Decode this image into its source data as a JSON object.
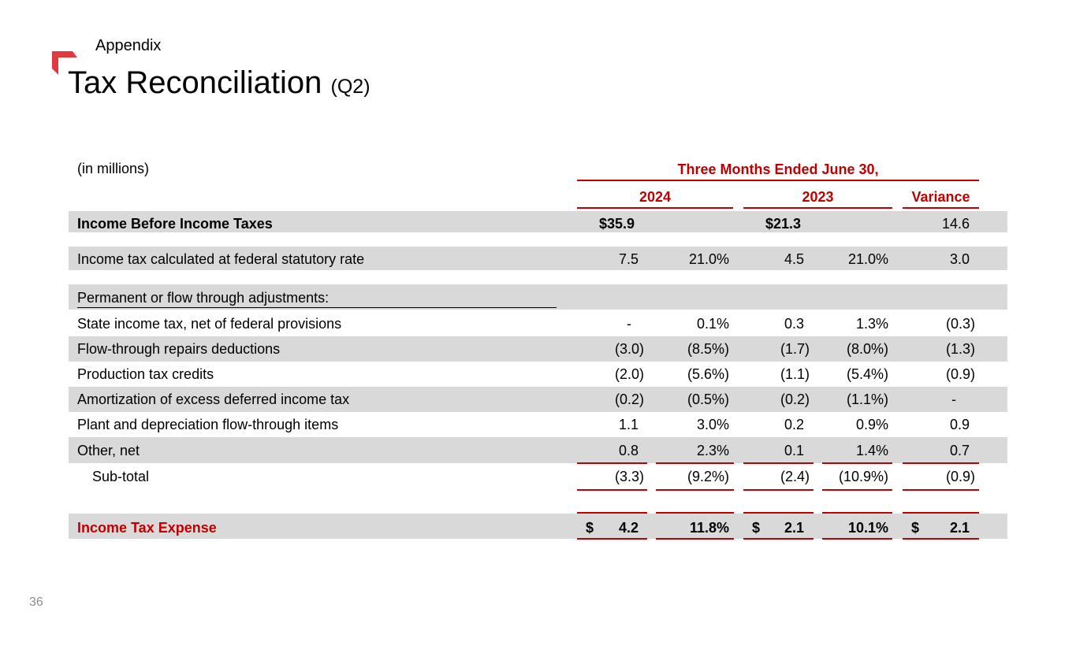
{
  "header": {
    "section": "Appendix",
    "title": "Tax Reconciliation",
    "title_suffix": "(Q2)"
  },
  "table": {
    "units": "(in millions)",
    "period_header": "Three Months Ended June 30,",
    "col_2024": "2024",
    "col_2023": "2023",
    "col_variance": "Variance",
    "income_before": {
      "label": "Income Before Income Taxes",
      "v2024": "$35.9",
      "v2023": "$21.3",
      "variance": "14.6"
    },
    "federal": {
      "label": "Income tax calculated at federal statutory rate",
      "v2024": "7.5",
      "p2024": "21.0%",
      "v2023": "4.5",
      "p2023": "21.0%",
      "variance": "3.0"
    },
    "adjustments_header": "Permanent or flow through adjustments:",
    "rows": [
      {
        "label": "State income tax, net of federal provisions",
        "v2024": "-",
        "p2024": "0.1%",
        "v2023": "0.3",
        "p2023": "1.3%",
        "variance": "(0.3)"
      },
      {
        "label": "Flow-through repairs deductions",
        "v2024": "(3.0)",
        "p2024": "(8.5%)",
        "v2023": "(1.7)",
        "p2023": "(8.0%)",
        "variance": "(1.3)"
      },
      {
        "label": "Production tax credits",
        "v2024": "(2.0)",
        "p2024": "(5.6%)",
        "v2023": "(1.1)",
        "p2023": "(5.4%)",
        "variance": "(0.9)"
      },
      {
        "label": "Amortization of excess deferred income tax",
        "v2024": "(0.2)",
        "p2024": "(0.5%)",
        "v2023": "(0.2)",
        "p2023": "(1.1%)",
        "variance": "-"
      },
      {
        "label": "Plant and depreciation flow-through items",
        "v2024": "1.1",
        "p2024": "3.0%",
        "v2023": "0.2",
        "p2023": "0.9%",
        "variance": "0.9"
      },
      {
        "label": "Other, net",
        "v2024": "0.8",
        "p2024": "2.3%",
        "v2023": "0.1",
        "p2023": "1.4%",
        "variance": "0.7"
      }
    ],
    "subtotal": {
      "label": "Sub-total",
      "v2024": "(3.3)",
      "p2024": "(9.2%)",
      "v2023": "(2.4)",
      "p2023": "(10.9%)",
      "variance": "(0.9)"
    },
    "expense": {
      "label": "Income Tax Expense",
      "dollar": "$",
      "v2024": "4.2",
      "p2024": "11.8%",
      "v2023": "2.1",
      "p2023": "10.1%",
      "variance": "2.1"
    }
  },
  "footer": {
    "page_number": "36"
  },
  "colors": {
    "accent": "#c00000",
    "shade": "#d9d9d9",
    "logo": "#e03a3e"
  }
}
